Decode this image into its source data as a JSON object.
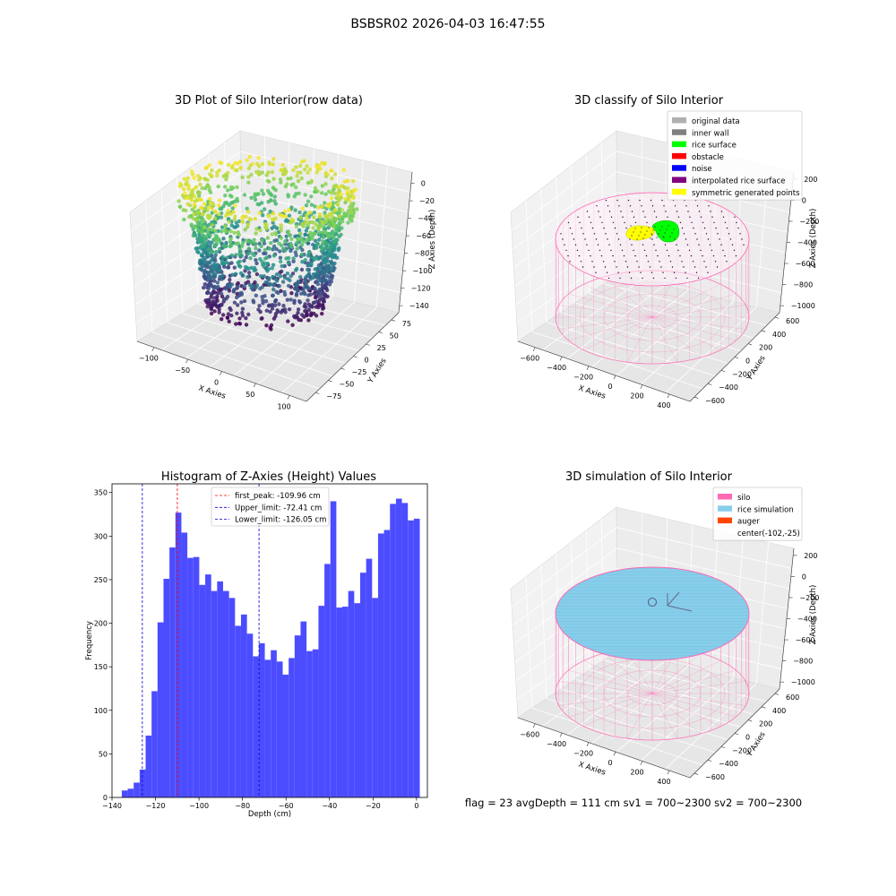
{
  "figure": {
    "suptitle": "BSBSR02 2026-04-03 16:47:55",
    "footer": "flag = 23  avgDepth = 111 cm  sv1 = 700~2300  sv2 = 700~2300"
  },
  "colors": {
    "silo": "#ff69b4",
    "rice": "#87ceeb",
    "auger": "#ff4500",
    "hist_bar": "#4c4cff",
    "first_peak": "#ff0000",
    "limits": "#0000cc",
    "rice_surface": "#00ff00",
    "symmetric": "#ffff00"
  },
  "chart_data": [
    {
      "type": "scatter",
      "panel": "scatter3d-raw",
      "title": "3D Plot of Silo Interior(row data)",
      "xlabel": "X Axies",
      "ylabel": "Y Axies",
      "zlabel": "Z Axies (Depth)",
      "xlim": [
        -125,
        105
      ],
      "ylim": [
        -85,
        90
      ],
      "zlim": [
        -145,
        5
      ],
      "x_ticks": [
        "−100",
        "−50",
        "0",
        "50",
        "100"
      ],
      "y_ticks": [
        "−75",
        "−50",
        "−25",
        "0",
        "25",
        "50",
        "75"
      ],
      "z_ticks": [
        "0",
        "−20",
        "−40",
        "−60",
        "−80",
        "−100",
        "−120",
        "−140"
      ],
      "colormap": "viridis",
      "grid": true
    },
    {
      "type": "scatter",
      "panel": "classify3d",
      "title": "3D classify of Silo Interior",
      "xlabel": "X Axies",
      "ylabel": "Y Axies",
      "zlabel": "Z Axies (Depth)",
      "x_ticks": [
        "−600",
        "−400",
        "−200",
        "0",
        "200",
        "400"
      ],
      "y_ticks": [
        "−600",
        "−400",
        "−200",
        "0",
        "200",
        "400",
        "600"
      ],
      "z_ticks": [
        "200",
        "0",
        "−200",
        "−400",
        "−600",
        "−800",
        "−1000"
      ],
      "legend_position": "top-right",
      "legend": [
        {
          "label": "original data",
          "color": "#b0b0b0"
        },
        {
          "label": "inner wall",
          "color": "#808080"
        },
        {
          "label": "rice surface",
          "color": "#00ff00"
        },
        {
          "label": "obstacle",
          "color": "#ff0000"
        },
        {
          "label": "noise",
          "color": "#0000ff"
        },
        {
          "label": "interpolated rice surface",
          "color": "#800080"
        },
        {
          "label": "symmetric generated points",
          "color": "#ffff00"
        }
      ],
      "grid": true
    },
    {
      "type": "bar",
      "panel": "histogram",
      "title": "Histogram of Z-Axies (Height) Values",
      "xlabel": "Depth (cm)",
      "ylabel": "Frequency",
      "xlim": [
        -140,
        5
      ],
      "ylim": [
        0,
        360
      ],
      "x_ticks": [
        -140,
        -120,
        -100,
        -80,
        -60,
        -40,
        -20,
        0
      ],
      "y_ticks": [
        0,
        50,
        100,
        150,
        200,
        250,
        300,
        350
      ],
      "bin_start": -135.5,
      "bin_width": 2.74,
      "values": [
        8,
        10,
        17,
        32,
        71,
        122,
        201,
        251,
        287,
        327,
        304,
        275,
        276,
        244,
        256,
        237,
        248,
        237,
        229,
        197,
        210,
        188,
        162,
        177,
        158,
        169,
        156,
        141,
        160,
        186,
        202,
        168,
        170,
        220,
        268,
        340,
        218,
        219,
        237,
        223,
        258,
        274,
        229,
        303,
        307,
        337,
        343,
        338,
        318,
        320
      ],
      "lines": [
        {
          "label": "first_peak: -109.96 cm",
          "value": -109.96,
          "color": "#ff0000"
        },
        {
          "label": "Upper_limit: -72.41 cm",
          "value": -72.41,
          "color": "#0000cc"
        },
        {
          "label": "Lower_limit: -126.05 cm",
          "value": -126.05,
          "color": "#0000cc"
        }
      ],
      "legend_position": "top-center",
      "grid": false
    },
    {
      "type": "scatter",
      "panel": "simulation3d",
      "title": "3D simulation of Silo Interior",
      "xlabel": "X Axies",
      "ylabel": "Y Axies",
      "zlabel": "Z Axies (Depth)",
      "x_ticks": [
        "−600",
        "−400",
        "−200",
        "0",
        "200",
        "400"
      ],
      "y_ticks": [
        "−600",
        "−400",
        "−200",
        "0",
        "200",
        "400",
        "600"
      ],
      "z_ticks": [
        "200",
        "0",
        "−200",
        "−400",
        "−600",
        "−800",
        "−1000"
      ],
      "legend_position": "top-right",
      "legend": [
        {
          "label": "silo",
          "color": "#ff69b4"
        },
        {
          "label": "rice simulation",
          "color": "#87ceeb"
        },
        {
          "label": "auger",
          "color": "#ff4500"
        },
        {
          "label": "center(-102,-25)",
          "color": ""
        }
      ],
      "grid": true
    }
  ]
}
